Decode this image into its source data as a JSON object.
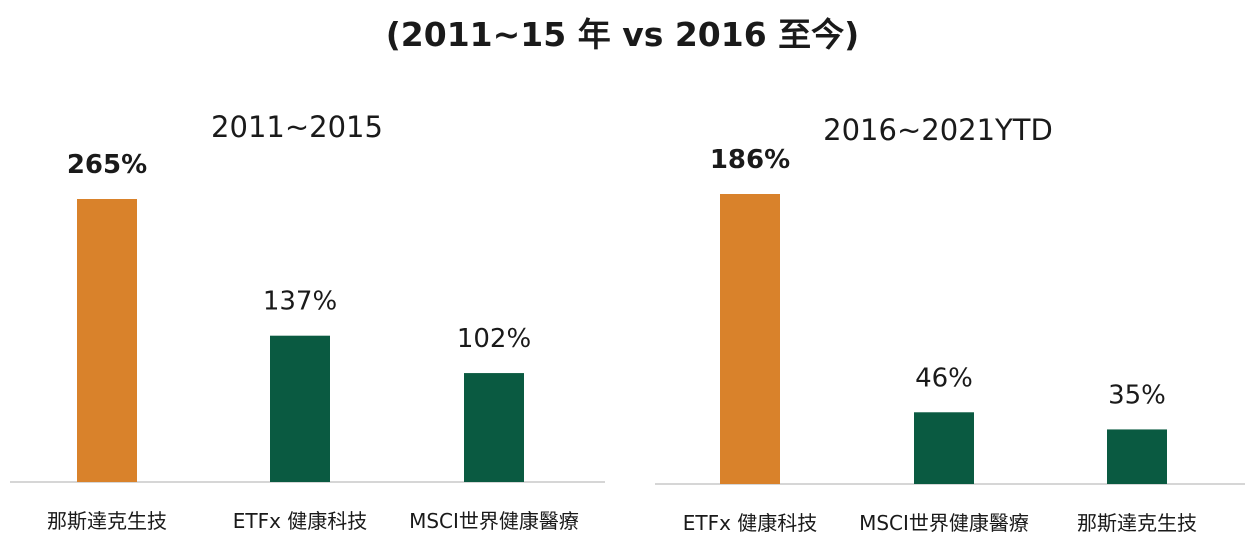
{
  "title": "(2011~15 年 vs 2016 至今)",
  "colors": {
    "highlight": "#D9822B",
    "normal": "#0A5A41"
  },
  "chart_data": [
    {
      "type": "bar",
      "title": "2011~2015",
      "categories": [
        "那斯達克生技",
        "ETFx 健康科技",
        "MSCI世界健康醫療"
      ],
      "values": [
        265,
        137,
        102
      ],
      "value_labels": [
        "265%",
        "137%",
        "102%"
      ],
      "highlight_index": 0,
      "unit": "%",
      "ylim": [
        0,
        300
      ]
    },
    {
      "type": "bar",
      "title": "2016~2021YTD",
      "categories": [
        "ETFx 健康科技",
        "MSCI世界健康醫療",
        "那斯達克生技"
      ],
      "values": [
        186,
        46,
        35
      ],
      "value_labels": [
        "186%",
        "46%",
        "35%"
      ],
      "highlight_index": 0,
      "unit": "%",
      "ylim": [
        0,
        200
      ]
    }
  ]
}
